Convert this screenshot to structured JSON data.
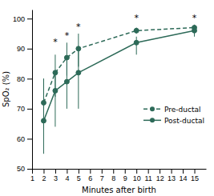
{
  "chart_data": {
    "type": "line",
    "x": [
      2,
      3,
      4,
      5,
      10,
      15
    ],
    "series": [
      {
        "name": "Pre-ductal",
        "color": "#2d6a58",
        "line_style": "dashed",
        "marker": "circle",
        "values": [
          72,
          82,
          87,
          90,
          96,
          97
        ],
        "error_low": [
          9,
          8,
          6,
          6,
          1,
          1
        ],
        "error_high": [
          8,
          6,
          5,
          5,
          1,
          1
        ]
      },
      {
        "name": "Post-ductal",
        "color": "#2d6a58",
        "line_style": "solid",
        "marker": "circle",
        "values": [
          66,
          76,
          79,
          82,
          92,
          96
        ],
        "error_low": [
          11,
          12,
          9,
          12,
          4,
          2
        ],
        "error_high": [
          14,
          6,
          8,
          8,
          2,
          1
        ]
      }
    ],
    "annotations": [
      {
        "x": 3,
        "y": 93,
        "text": "*"
      },
      {
        "x": 4,
        "y": 95,
        "text": "*"
      },
      {
        "x": 5,
        "y": 98,
        "text": "*"
      },
      {
        "x": 10,
        "y": 101,
        "text": "*"
      },
      {
        "x": 15,
        "y": 101,
        "text": "*"
      }
    ],
    "xlim": [
      1,
      16
    ],
    "ylim": [
      50,
      103
    ],
    "xticks": [
      1,
      2,
      3,
      4,
      5,
      6,
      7,
      8,
      9,
      10,
      11,
      12,
      13,
      14,
      15
    ],
    "yticks": [
      50,
      60,
      70,
      80,
      90,
      100
    ],
    "xlabel": "Minutes after birth",
    "ylabel": "SpO₂ (%)",
    "legend": "right"
  }
}
